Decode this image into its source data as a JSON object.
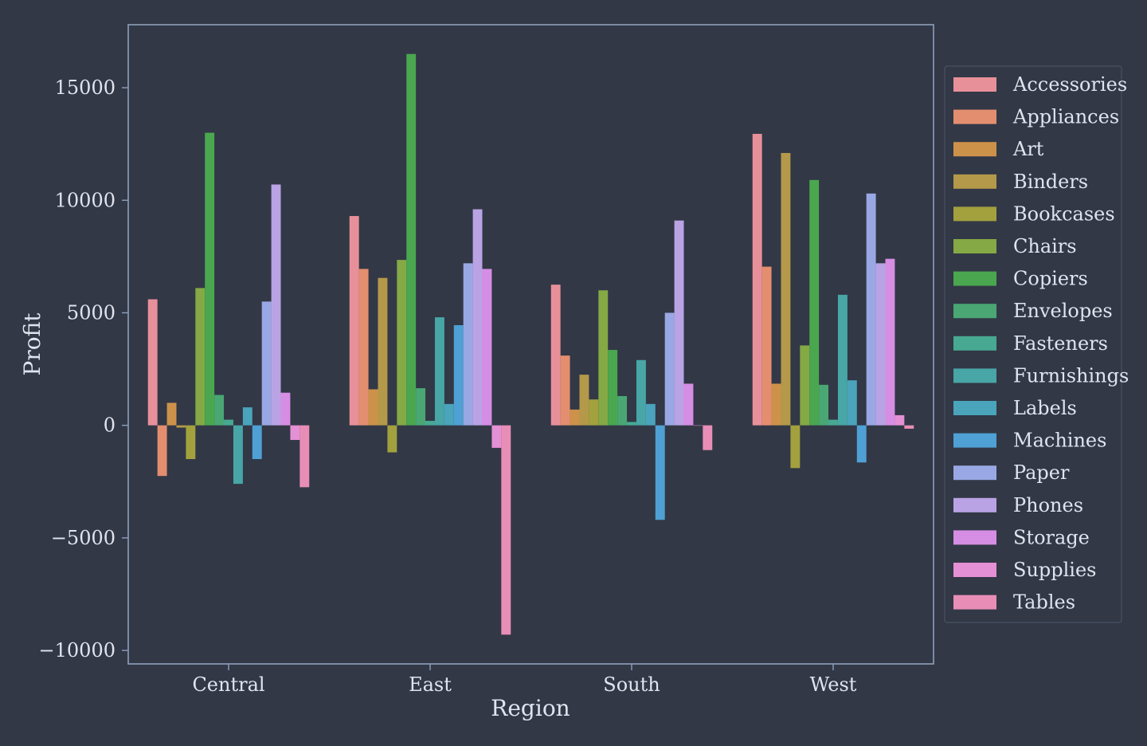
{
  "chart_data": {
    "type": "bar",
    "xlabel": "Region",
    "ylabel": "Profit",
    "ylim": [
      -10600,
      17800
    ],
    "yticks": [
      -10000,
      -5000,
      0,
      5000,
      10000,
      15000
    ],
    "ytick_labels": [
      "−10000",
      "−5000",
      "0",
      "5000",
      "10000",
      "15000"
    ],
    "grid": false,
    "legend_position": "right",
    "categories": [
      "Central",
      "East",
      "South",
      "West"
    ],
    "series": [
      {
        "name": "Accessories",
        "color": "#e8909a",
        "values": [
          5600,
          9300,
          6250,
          12950
        ]
      },
      {
        "name": "Appliances",
        "color": "#e48e70",
        "values": [
          -2250,
          6950,
          3100,
          7050
        ]
      },
      {
        "name": "Art",
        "color": "#cd924a",
        "values": [
          1000,
          1600,
          700,
          1850
        ]
      },
      {
        "name": "Binders",
        "color": "#b4994a",
        "values": [
          -100,
          6550,
          2250,
          12100
        ]
      },
      {
        "name": "Bookcases",
        "color": "#a2a13e",
        "values": [
          -1500,
          -1200,
          1150,
          -1900
        ]
      },
      {
        "name": "Chairs",
        "color": "#84a945",
        "values": [
          6100,
          7350,
          6000,
          3550
        ]
      },
      {
        "name": "Copiers",
        "color": "#4aa74f",
        "values": [
          13000,
          16500,
          3350,
          10900
        ]
      },
      {
        "name": "Envelopes",
        "color": "#4aa774",
        "values": [
          1350,
          1650,
          1300,
          1800
        ]
      },
      {
        "name": "Fasteners",
        "color": "#48a993",
        "values": [
          250,
          200,
          150,
          250
        ]
      },
      {
        "name": "Furnishings",
        "color": "#48a6a6",
        "values": [
          -2600,
          4800,
          2900,
          5800
        ]
      },
      {
        "name": "Labels",
        "color": "#4aa4bb",
        "values": [
          800,
          950,
          950,
          2000
        ]
      },
      {
        "name": "Machines",
        "color": "#4fa0d4",
        "values": [
          -1500,
          4450,
          -4200,
          -1650
        ]
      },
      {
        "name": "Paper",
        "color": "#99a8e4",
        "values": [
          5500,
          7200,
          5000,
          10300
        ]
      },
      {
        "name": "Phones",
        "color": "#b9a3e4",
        "values": [
          10700,
          9600,
          9100,
          7200
        ]
      },
      {
        "name": "Storage",
        "color": "#d68de4",
        "values": [
          1450,
          6950,
          1850,
          7400
        ]
      },
      {
        "name": "Supplies",
        "color": "#e490d4",
        "values": [
          -650,
          -1000,
          0,
          450
        ]
      },
      {
        "name": "Tables",
        "color": "#e88eb6",
        "values": [
          -2750,
          -9300,
          -1100,
          -150
        ]
      }
    ]
  },
  "colors": {
    "background": "#323846",
    "axes_edge": "#8ea0bb",
    "text": "#dfe4ee",
    "legend_bg": "#323846",
    "legend_edge": "#4a5263"
  }
}
